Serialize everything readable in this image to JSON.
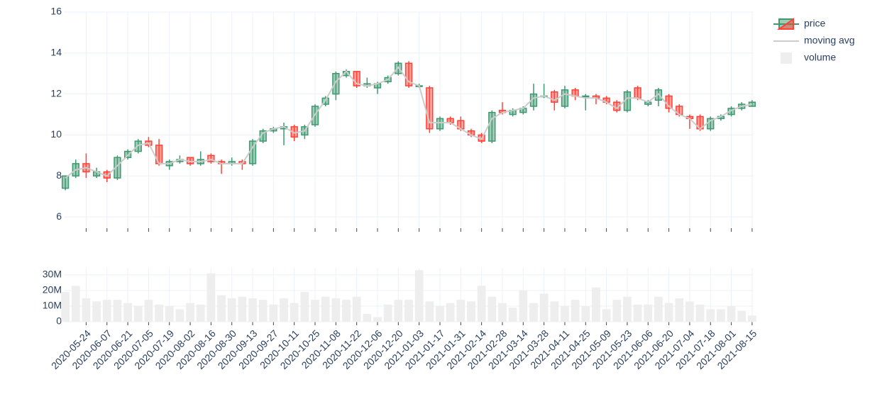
{
  "chart_data": {
    "type": "candlestick",
    "x": [
      "2020-05-10",
      "2020-05-17",
      "2020-05-24",
      "2020-05-31",
      "2020-06-07",
      "2020-06-14",
      "2020-06-21",
      "2020-06-28",
      "2020-07-05",
      "2020-07-12",
      "2020-07-19",
      "2020-07-26",
      "2020-08-02",
      "2020-08-09",
      "2020-08-16",
      "2020-08-23",
      "2020-08-30",
      "2020-09-06",
      "2020-09-13",
      "2020-09-20",
      "2020-09-27",
      "2020-10-04",
      "2020-10-11",
      "2020-10-18",
      "2020-10-25",
      "2020-11-01",
      "2020-11-08",
      "2020-11-15",
      "2020-11-22",
      "2020-11-29",
      "2020-12-06",
      "2020-12-13",
      "2020-12-20",
      "2020-12-27",
      "2021-01-03",
      "2021-01-10",
      "2021-01-17",
      "2021-01-24",
      "2021-01-31",
      "2021-02-07",
      "2021-02-14",
      "2021-02-21",
      "2021-02-28",
      "2021-03-07",
      "2021-03-14",
      "2021-03-21",
      "2021-03-28",
      "2021-04-04",
      "2021-04-11",
      "2021-04-18",
      "2021-04-25",
      "2021-05-02",
      "2021-05-09",
      "2021-05-16",
      "2021-05-23",
      "2021-05-30",
      "2021-06-06",
      "2021-06-13",
      "2021-06-20",
      "2021-06-27",
      "2021-07-04",
      "2021-07-11",
      "2021-07-18",
      "2021-07-25",
      "2021-08-01",
      "2021-08-08",
      "2021-08-15"
    ],
    "xlim": [
      "2020-05-09",
      "2021-08-16"
    ],
    "xticks": [
      "2020-05-24",
      "2020-06-07",
      "2020-06-21",
      "2020-07-05",
      "2020-07-19",
      "2020-08-02",
      "2020-08-16",
      "2020-08-30",
      "2020-09-13",
      "2020-09-27",
      "2020-10-11",
      "2020-10-25",
      "2020-11-08",
      "2020-11-22",
      "2020-12-06",
      "2020-12-20",
      "2021-01-03",
      "2021-01-17",
      "2021-01-31",
      "2021-02-14",
      "2021-02-28",
      "2021-03-14",
      "2021-03-28",
      "2021-04-11",
      "2021-04-25",
      "2021-05-09",
      "2021-05-23",
      "2021-06-06",
      "2021-06-20",
      "2021-07-04",
      "2021-07-18",
      "2021-08-01",
      "2021-08-15"
    ],
    "ylim": [
      5.45,
      16
    ],
    "yticks": [
      6,
      8,
      10,
      12,
      14,
      16
    ],
    "y2lim": [
      0,
      34500000
    ],
    "y2ticks": [
      0,
      {
        "value": 10000000,
        "label": "10M"
      },
      {
        "value": 20000000,
        "label": "20M"
      },
      {
        "value": 30000000,
        "label": "30M"
      }
    ],
    "grid": true,
    "legend": "top-right",
    "series": [
      {
        "name": "price",
        "increasing_color": "#3d9970",
        "decreasing_color": "#ff4136",
        "open": [
          7.4,
          8.0,
          8.6,
          8.0,
          8.2,
          7.9,
          8.9,
          9.2,
          9.7,
          9.5,
          8.5,
          8.7,
          8.9,
          8.6,
          9.0,
          8.7,
          8.6,
          8.7,
          8.6,
          9.7,
          10.2,
          10.3,
          10.4,
          10.0,
          10.5,
          11.5,
          12.0,
          12.9,
          13.1,
          12.4,
          12.3,
          12.6,
          13.0,
          13.5,
          12.4,
          12.3,
          10.3,
          10.8,
          10.7,
          10.2,
          10.0,
          9.7,
          11.2,
          11.0,
          11.1,
          11.4,
          11.9,
          12.1,
          11.4,
          12.2,
          11.9,
          11.9,
          11.8,
          11.6,
          11.2,
          12.3,
          11.5,
          11.7,
          11.9,
          11.4,
          10.9,
          10.9,
          10.3,
          10.8,
          11.0,
          11.3,
          11.4
        ],
        "high": [
          8.0,
          8.8,
          9.1,
          8.4,
          8.3,
          9.0,
          9.3,
          9.8,
          9.9,
          9.8,
          8.8,
          9.0,
          8.9,
          9.2,
          9.1,
          8.8,
          8.9,
          8.8,
          9.8,
          10.3,
          10.4,
          10.6,
          10.5,
          10.5,
          11.5,
          11.9,
          13.1,
          13.2,
          13.1,
          12.8,
          12.6,
          12.9,
          13.6,
          13.6,
          12.5,
          12.4,
          10.9,
          10.9,
          10.9,
          10.3,
          10.1,
          11.2,
          11.6,
          11.3,
          11.4,
          12.5,
          12.5,
          12.2,
          12.4,
          12.3,
          12.0,
          12.0,
          11.9,
          11.7,
          12.2,
          12.4,
          11.7,
          12.3,
          12.0,
          11.5,
          11.0,
          11.0,
          10.9,
          11.0,
          11.4,
          11.6,
          11.7
        ],
        "low": [
          7.3,
          7.9,
          7.9,
          7.9,
          7.7,
          7.8,
          8.8,
          9.1,
          9.4,
          8.5,
          8.3,
          8.6,
          8.5,
          8.5,
          8.6,
          8.1,
          8.5,
          8.3,
          8.5,
          9.6,
          10.1,
          9.5,
          9.7,
          9.8,
          10.4,
          11.4,
          11.7,
          12.8,
          12.3,
          12.3,
          12.0,
          12.5,
          12.9,
          12.3,
          12.3,
          10.1,
          10.2,
          10.5,
          10.2,
          9.9,
          9.6,
          9.6,
          11.0,
          10.9,
          11.0,
          11.2,
          11.8,
          11.2,
          11.3,
          11.7,
          11.2,
          11.5,
          11.5,
          11.1,
          11.1,
          11.7,
          11.4,
          11.4,
          11.1,
          10.9,
          10.3,
          10.2,
          10.2,
          10.7,
          10.9,
          11.2,
          11.4
        ],
        "close": [
          8.0,
          8.6,
          8.2,
          8.2,
          7.9,
          8.9,
          9.2,
          9.7,
          9.5,
          8.6,
          8.7,
          8.8,
          8.6,
          8.8,
          8.7,
          8.6,
          8.7,
          8.6,
          9.7,
          10.2,
          10.3,
          10.4,
          9.9,
          10.4,
          11.4,
          11.8,
          13.0,
          13.1,
          12.4,
          12.5,
          12.5,
          12.8,
          13.5,
          12.4,
          12.4,
          10.3,
          10.8,
          10.6,
          10.3,
          10.0,
          9.7,
          11.1,
          11.1,
          11.2,
          11.3,
          12.0,
          11.9,
          11.6,
          12.2,
          11.9,
          11.9,
          11.8,
          11.6,
          11.2,
          12.1,
          11.8,
          11.6,
          12.2,
          11.3,
          11.0,
          10.8,
          10.3,
          10.8,
          10.9,
          11.3,
          11.5,
          11.6
        ]
      },
      {
        "name": "moving avg",
        "color": "#cccccc",
        "values": [
          7.9,
          8.3,
          8.4,
          8.2,
          8.0,
          8.5,
          9.0,
          9.5,
          9.6,
          8.6,
          8.6,
          8.8,
          8.7,
          8.7,
          8.8,
          8.6,
          8.6,
          8.6,
          9.4,
          10.1,
          10.3,
          10.4,
          10.1,
          10.2,
          11.0,
          11.7,
          12.6,
          13.1,
          12.5,
          12.4,
          12.5,
          12.7,
          13.3,
          12.6,
          12.4,
          10.6,
          10.6,
          10.6,
          10.3,
          10.0,
          9.8,
          10.8,
          11.1,
          11.2,
          11.3,
          11.8,
          11.9,
          11.7,
          12.0,
          11.9,
          11.8,
          11.8,
          11.6,
          11.3,
          11.8,
          11.8,
          11.6,
          12.0,
          11.4,
          11.0,
          10.8,
          10.3,
          10.7,
          10.9,
          11.2,
          11.4,
          11.5
        ]
      },
      {
        "name": "volume",
        "color": "#eeeeee",
        "axis": "y2",
        "values": [
          19000000,
          23000000,
          15000000,
          13000000,
          14000000,
          14000000,
          12000000,
          10000000,
          14000000,
          11000000,
          10000000,
          8000000,
          12000000,
          11000000,
          31000000,
          17000000,
          15000000,
          16000000,
          15000000,
          14000000,
          11000000,
          15000000,
          12000000,
          19000000,
          14000000,
          16000000,
          15000000,
          14000000,
          16000000,
          5000000,
          3000000,
          11000000,
          14000000,
          14000000,
          33000000,
          13000000,
          10000000,
          12000000,
          14000000,
          13000000,
          23000000,
          16000000,
          12000000,
          9000000,
          20000000,
          12000000,
          18000000,
          13000000,
          10000000,
          14000000,
          10000000,
          22000000,
          8000000,
          14000000,
          16000000,
          11000000,
          11000000,
          16000000,
          12000000,
          15000000,
          13000000,
          11000000,
          8000000,
          8000000,
          10000000,
          7000000,
          4000000
        ]
      }
    ]
  }
}
